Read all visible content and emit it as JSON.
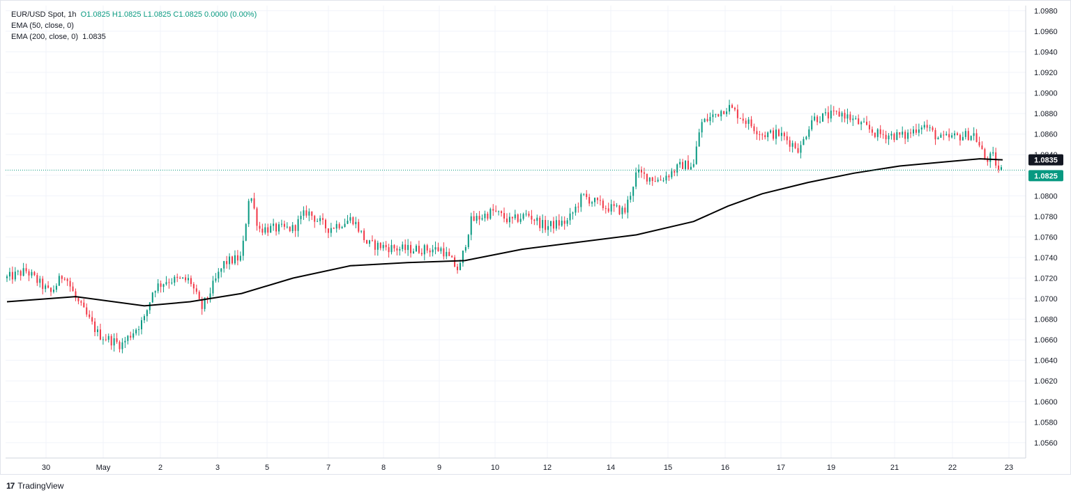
{
  "legend": {
    "symbol": "EUR/USD Spot, 1h",
    "ohlc": "O1.0825  H1.0825  L1.0825  C1.0825  0.0000 (0.00%)",
    "ema50": "EMA (50, close, 0)",
    "ema200_label": "EMA (200, close, 0)",
    "ema200_value": "1.0835"
  },
  "brand": {
    "name": "TradingView",
    "logo": "17"
  },
  "price_tags": {
    "ema200": "1.0835",
    "last": "1.0825"
  },
  "colors": {
    "up": "#089981",
    "down": "#F23645",
    "ema": "#000000",
    "grid": "#F0F3FA",
    "last_line": "#089981"
  },
  "chart_data": {
    "type": "candlestick",
    "title": "EUR/USD Spot, 1h",
    "ylim": [
      1.0545,
      1.0985
    ],
    "y_ticks": [
      "1.0980",
      "1.0960",
      "1.0940",
      "1.0920",
      "1.0900",
      "1.0880",
      "1.0860",
      "1.0840",
      "1.0820",
      "1.0800",
      "1.0780",
      "1.0760",
      "1.0740",
      "1.0720",
      "1.0700",
      "1.0680",
      "1.0660",
      "1.0640",
      "1.0620",
      "1.0600",
      "1.0580",
      "1.0560"
    ],
    "x_labels": [
      "30",
      "May",
      "2",
      "3",
      "5",
      "7",
      "8",
      "9",
      "10",
      "12",
      "14",
      "15",
      "16",
      "17",
      "19",
      "21",
      "22",
      "23"
    ],
    "last_price": 1.0825,
    "ema200_last": 1.0835,
    "series": [
      {
        "name": "EUR/USD Spot",
        "anchors": [
          {
            "t": 0,
            "price": 1.072
          },
          {
            "t": 17,
            "price": 1.0727
          },
          {
            "t": 38,
            "price": 1.0705
          },
          {
            "t": 50,
            "price": 1.0725
          },
          {
            "t": 60,
            "price": 1.07
          },
          {
            "t": 80,
            "price": 1.0665
          },
          {
            "t": 100,
            "price": 1.0655
          },
          {
            "t": 120,
            "price": 1.068
          },
          {
            "t": 128,
            "price": 1.071
          },
          {
            "t": 140,
            "price": 1.0718
          },
          {
            "t": 160,
            "price": 1.0718
          },
          {
            "t": 170,
            "price": 1.069
          },
          {
            "t": 190,
            "price": 1.0735
          },
          {
            "t": 205,
            "price": 1.074
          },
          {
            "t": 212,
            "price": 1.0805
          },
          {
            "t": 220,
            "price": 1.0768
          },
          {
            "t": 250,
            "price": 1.0768
          },
          {
            "t": 262,
            "price": 1.0785
          },
          {
            "t": 280,
            "price": 1.0768
          },
          {
            "t": 302,
            "price": 1.0778
          },
          {
            "t": 315,
            "price": 1.0753
          },
          {
            "t": 345,
            "price": 1.0748
          },
          {
            "t": 380,
            "price": 1.0748
          },
          {
            "t": 395,
            "price": 1.0727
          },
          {
            "t": 405,
            "price": 1.0775
          },
          {
            "t": 425,
            "price": 1.0785
          },
          {
            "t": 440,
            "price": 1.0775
          },
          {
            "t": 455,
            "price": 1.0782
          },
          {
            "t": 470,
            "price": 1.077
          },
          {
            "t": 490,
            "price": 1.0775
          },
          {
            "t": 503,
            "price": 1.08
          },
          {
            "t": 520,
            "price": 1.079
          },
          {
            "t": 540,
            "price": 1.0785
          },
          {
            "t": 550,
            "price": 1.0822
          },
          {
            "t": 570,
            "price": 1.0815
          },
          {
            "t": 590,
            "price": 1.083
          },
          {
            "t": 600,
            "price": 1.083
          },
          {
            "t": 606,
            "price": 1.087
          },
          {
            "t": 630,
            "price": 1.0887
          },
          {
            "t": 660,
            "price": 1.086
          },
          {
            "t": 675,
            "price": 1.086
          },
          {
            "t": 693,
            "price": 1.0845
          },
          {
            "t": 703,
            "price": 1.0875
          },
          {
            "t": 730,
            "price": 1.088
          },
          {
            "t": 760,
            "price": 1.086
          },
          {
            "t": 785,
            "price": 1.0858
          },
          {
            "t": 800,
            "price": 1.087
          },
          {
            "t": 815,
            "price": 1.0855
          },
          {
            "t": 845,
            "price": 1.086
          },
          {
            "t": 855,
            "price": 1.0835
          },
          {
            "t": 862,
            "price": 1.0838
          },
          {
            "t": 866,
            "price": 1.0825
          },
          {
            "t": 870,
            "price": 1.0825
          }
        ]
      },
      {
        "name": "EMA (200, close, 0)",
        "points": [
          {
            "t": 0,
            "price": 1.0697
          },
          {
            "t": 60,
            "price": 1.0702
          },
          {
            "t": 120,
            "price": 1.0693
          },
          {
            "t": 160,
            "price": 1.0697
          },
          {
            "t": 205,
            "price": 1.0705
          },
          {
            "t": 250,
            "price": 1.072
          },
          {
            "t": 300,
            "price": 1.0732
          },
          {
            "t": 350,
            "price": 1.0735
          },
          {
            "t": 400,
            "price": 1.0737
          },
          {
            "t": 450,
            "price": 1.0748
          },
          {
            "t": 500,
            "price": 1.0755
          },
          {
            "t": 550,
            "price": 1.0762
          },
          {
            "t": 600,
            "price": 1.0775
          },
          {
            "t": 630,
            "price": 1.079
          },
          {
            "t": 660,
            "price": 1.0802
          },
          {
            "t": 700,
            "price": 1.0813
          },
          {
            "t": 740,
            "price": 1.0822
          },
          {
            "t": 780,
            "price": 1.0829
          },
          {
            "t": 820,
            "price": 1.0833
          },
          {
            "t": 850,
            "price": 1.0836
          },
          {
            "t": 870,
            "price": 1.0835
          }
        ]
      }
    ]
  }
}
